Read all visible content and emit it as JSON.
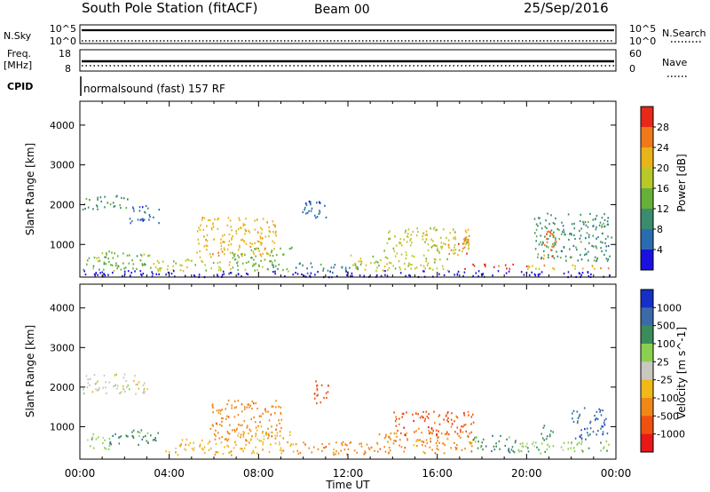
{
  "chart_data": {
    "type": "heatmap",
    "header": {
      "title": "South Pole Station (fitACF)",
      "beam": "Beam 00",
      "date": "25/Sep/2016"
    },
    "x_axis": {
      "label": "Time UT",
      "range": [
        "00:00",
        "24:00"
      ],
      "ticks": [
        "00:00",
        "04:00",
        "08:00",
        "12:00",
        "16:00",
        "20:00",
        "00:00"
      ]
    },
    "top_panels": {
      "nsky": {
        "label": "N.Sky",
        "left_ticks": [
          "10^5",
          "10^0"
        ],
        "right_label": "N.Search",
        "right_ticks": [
          "10^5",
          "10^0"
        ]
      },
      "freq": {
        "label_line1": "Freq.",
        "label_line2": "[MHz]",
        "left_ticks": [
          "18",
          "8"
        ],
        "right_label": "Nave",
        "right_ticks": [
          "60",
          "0"
        ]
      },
      "cpid": {
        "label": "CPID",
        "text": "normalsound (fast) 157 RF"
      }
    },
    "panels": [
      {
        "name": "power",
        "ylabel": "Slant Range [km]",
        "y_ticks": [
          1000,
          2000,
          3000,
          4000
        ],
        "ylim": [
          180,
          4600
        ],
        "colorbar": {
          "label": "Power [dB]",
          "ticks": [
            "4",
            "8",
            "12",
            "16",
            "20",
            "24",
            "28"
          ],
          "colors": [
            "#1a10e0",
            "#2a6cb0",
            "#3a8c6e",
            "#66b03a",
            "#b8c828",
            "#e8b418",
            "#f07818",
            "#e82818"
          ]
        },
        "regions": [
          {
            "t0": 0.1,
            "t1": 2.2,
            "r0": 1900,
            "r1": 2250,
            "level": 2
          },
          {
            "t0": 2.2,
            "t1": 3.6,
            "r0": 1550,
            "r1": 2000,
            "level": 1
          },
          {
            "t0": 0.1,
            "t1": 3.2,
            "r0": 350,
            "r1": 850,
            "level": 3
          },
          {
            "t0": 3.2,
            "t1": 6.8,
            "r0": 350,
            "r1": 650,
            "level": 4
          },
          {
            "t0": 5.2,
            "t1": 8.8,
            "r0": 700,
            "r1": 1700,
            "level": 5
          },
          {
            "t0": 6.8,
            "t1": 9.6,
            "r0": 350,
            "r1": 950,
            "level": 3
          },
          {
            "t0": 9.9,
            "t1": 11.0,
            "r0": 1600,
            "r1": 2200,
            "level": 1
          },
          {
            "t0": 9.6,
            "t1": 12.5,
            "r0": 350,
            "r1": 550,
            "level": 2
          },
          {
            "t0": 12.0,
            "t1": 16.5,
            "r0": 350,
            "r1": 750,
            "level": 4
          },
          {
            "t0": 13.6,
            "t1": 17.4,
            "r0": 750,
            "r1": 1450,
            "level": 4
          },
          {
            "t0": 16.4,
            "t1": 17.4,
            "r0": 750,
            "r1": 1250,
            "level": 6
          },
          {
            "t0": 17.2,
            "t1": 20.0,
            "r0": 400,
            "r1": 520,
            "level": 7
          },
          {
            "t0": 20.0,
            "t1": 23.8,
            "r0": 400,
            "r1": 520,
            "level": 5
          },
          {
            "t0": 20.3,
            "t1": 23.8,
            "r0": 600,
            "r1": 1800,
            "level": 2
          },
          {
            "t0": 20.7,
            "t1": 21.3,
            "r0": 650,
            "r1": 1400,
            "level": 6
          },
          {
            "t0": 0.1,
            "t1": 23.8,
            "r0": 200,
            "r1": 360,
            "level": 0
          }
        ]
      },
      {
        "name": "velocity",
        "ylabel": "Slant Range [km]",
        "y_ticks": [
          1000,
          2000,
          3000,
          4000
        ],
        "ylim": [
          180,
          4600
        ],
        "colorbar": {
          "label": "Velocity [m s^-1]",
          "ticks": [
            "1000",
            "500",
            "100",
            "25",
            "-25",
            "-100",
            "-500",
            "-1000"
          ],
          "colors": [
            "#1430c8",
            "#3a6aa8",
            "#3a8c5a",
            "#8ad050",
            "#c8c8c0",
            "#f0b818",
            "#f08818",
            "#f05010",
            "#e81818"
          ]
        },
        "regions": [
          {
            "t0": 0.1,
            "t1": 3.0,
            "r0": 1850,
            "r1": 2350,
            "level": 4
          },
          {
            "t0": 0.3,
            "t1": 1.3,
            "r0": 450,
            "r1": 850,
            "level": 3
          },
          {
            "t0": 1.3,
            "t1": 3.5,
            "r0": 550,
            "r1": 950,
            "level": 2
          },
          {
            "t0": 3.8,
            "t1": 7.0,
            "r0": 300,
            "r1": 700,
            "level": 5
          },
          {
            "t0": 5.8,
            "t1": 9.0,
            "r0": 700,
            "r1": 1700,
            "level": 6
          },
          {
            "t0": 7.0,
            "t1": 9.6,
            "r0": 350,
            "r1": 900,
            "level": 5
          },
          {
            "t0": 10.4,
            "t1": 11.1,
            "r0": 1600,
            "r1": 2200,
            "level": 7
          },
          {
            "t0": 9.6,
            "t1": 13.2,
            "r0": 300,
            "r1": 650,
            "level": 6
          },
          {
            "t0": 13.2,
            "t1": 17.6,
            "r0": 350,
            "r1": 900,
            "level": 6
          },
          {
            "t0": 14.0,
            "t1": 17.6,
            "r0": 800,
            "r1": 1400,
            "level": 7
          },
          {
            "t0": 17.6,
            "t1": 19.6,
            "r0": 350,
            "r1": 800,
            "level": 2
          },
          {
            "t0": 19.6,
            "t1": 23.8,
            "r0": 350,
            "r1": 650,
            "level": 3
          },
          {
            "t0": 20.6,
            "t1": 21.2,
            "r0": 650,
            "r1": 1100,
            "level": 2
          },
          {
            "t0": 22.0,
            "t1": 23.6,
            "r0": 700,
            "r1": 1500,
            "level": 1
          }
        ]
      }
    ]
  }
}
